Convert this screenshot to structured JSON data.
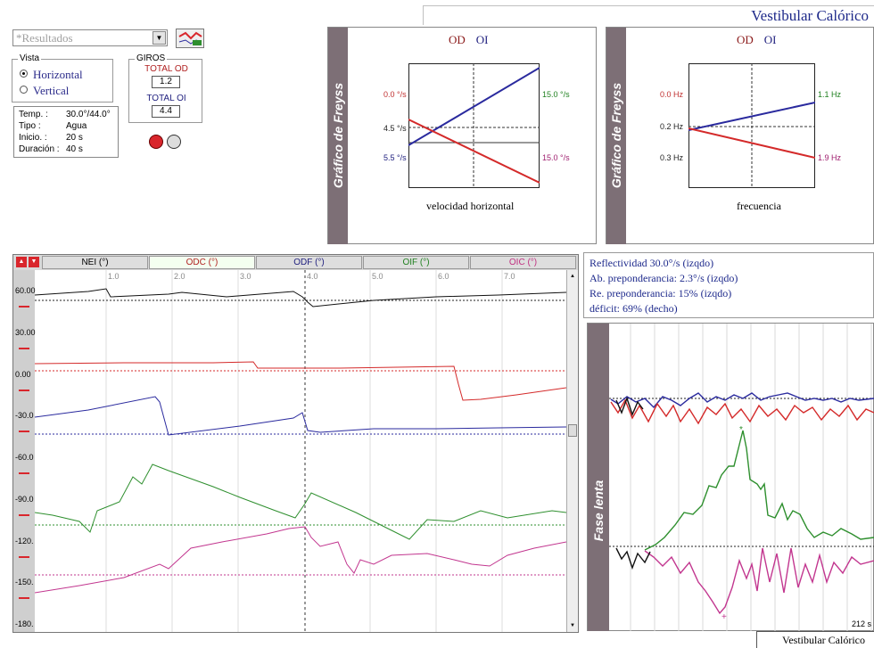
{
  "header": {
    "title": "Vestibular Calórico"
  },
  "footer": {
    "title": "Vestibular Calórico"
  },
  "results_select": {
    "value": "*Resultados"
  },
  "view": {
    "title": "Vista",
    "options": [
      {
        "label": "Horizontal",
        "selected": true
      },
      {
        "label": "Vertical",
        "selected": false
      }
    ]
  },
  "turns": {
    "title": "GIROS",
    "od_label": "TOTAL OD",
    "od_value": "1.2",
    "oi_label": "TOTAL OI",
    "oi_value": "4.4"
  },
  "info": [
    {
      "label": "Temp. :",
      "value": "30.0°/44.0°"
    },
    {
      "label": "Tipo :",
      "value": "Agua"
    },
    {
      "label": "Inicio. :",
      "value": "20 s"
    },
    {
      "label": "Duración :",
      "value": "40 s"
    }
  ],
  "freyss_velocity": {
    "side_title": "Gráfico de Freyss",
    "legend_od": "OD",
    "legend_oi": "OI",
    "left_labels": [
      "0.0 °/s",
      "4.5 °/s",
      "5.5 °/s"
    ],
    "right_labels": [
      "15.0 °/s",
      "15.0 °/s"
    ],
    "caption": "velocidad horizontal"
  },
  "freyss_frequency": {
    "side_title": "Gráfico de Freyss",
    "legend_od": "OD",
    "legend_oi": "OI",
    "left_labels": [
      "0.0 Hz",
      "0.2 Hz",
      "0.3 Hz"
    ],
    "right_labels": [
      "1.1 Hz",
      "1.9 Hz"
    ],
    "caption": "frecuencia"
  },
  "trace": {
    "tabs": [
      "NEI (°)",
      "ODC (°)",
      "ODF (°)",
      "OIF (°)",
      "OIC (°)"
    ],
    "active_tab": 1,
    "x_ticks": [
      "1.0",
      "2.0",
      "3.0",
      "4.0",
      "5.0",
      "6.0",
      "7.0"
    ],
    "y_labels": [
      "60.00",
      "30.00",
      "0.00",
      "-30.0",
      "-60.0",
      "-90.0",
      "-120.",
      "-150.",
      "-180."
    ]
  },
  "results": [
    "Reflectividad 30.0°/s (izqdo)",
    "Ab. preponderancia: 2.3°/s (izqdo)",
    "Re. preponderancia: 15% (izqdo)",
    "déficit: 69% (decho)"
  ],
  "slow_phase": {
    "side_title": "Fase lenta",
    "time_label": "212 s"
  },
  "colors": {
    "od_red": "#d42a2a",
    "oi_blue": "#2a2a9e",
    "green": "#2e8f2e",
    "magenta": "#c2368f",
    "sidebar": "#7d6f76",
    "accent_text": "#1e2a8c"
  }
}
